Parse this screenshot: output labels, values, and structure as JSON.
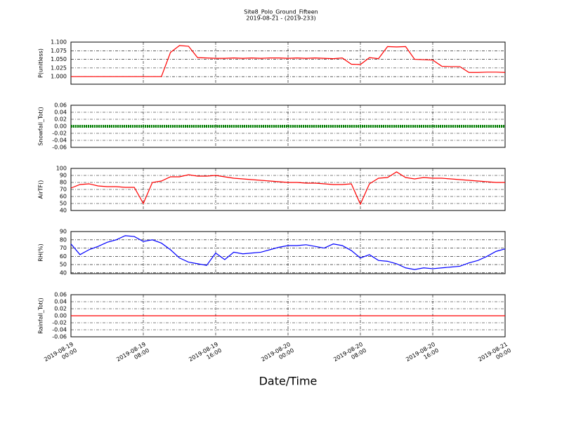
{
  "chart_data": [
    {
      "type": "line",
      "title": "Site8_Polo_Ground_Fifteen",
      "subtitle": "2019-08-21 - (2019-233)",
      "ylabel": "P(unitless)",
      "color": "#ff0000",
      "grid": true,
      "xlim": [
        "2019-08-19 00:00",
        "2019-08-21 00:00"
      ],
      "ylim": [
        0.978,
        1.1
      ],
      "yticks": [
        {
          "value": 1.0,
          "label": "1.000"
        },
        {
          "value": 1.025,
          "label": "1.025"
        },
        {
          "value": 1.05,
          "label": "1.050"
        },
        {
          "value": 1.075,
          "label": "1.075"
        },
        {
          "value": 1.1,
          "label": "1.100"
        }
      ],
      "x": [
        "2019-08-19 00:00",
        "2019-08-19 01:00",
        "2019-08-19 02:00",
        "2019-08-19 03:00",
        "2019-08-19 04:00",
        "2019-08-19 05:00",
        "2019-08-19 06:00",
        "2019-08-19 07:00",
        "2019-08-19 08:00",
        "2019-08-19 09:00",
        "2019-08-19 10:00",
        "2019-08-19 11:00",
        "2019-08-19 12:00",
        "2019-08-19 13:00",
        "2019-08-19 14:00",
        "2019-08-19 15:00",
        "2019-08-19 16:00",
        "2019-08-19 17:00",
        "2019-08-19 18:00",
        "2019-08-19 19:00",
        "2019-08-19 20:00",
        "2019-08-19 21:00",
        "2019-08-19 22:00",
        "2019-08-19 23:00",
        "2019-08-20 00:00",
        "2019-08-20 01:00",
        "2019-08-20 02:00",
        "2019-08-20 03:00",
        "2019-08-20 04:00",
        "2019-08-20 05:00",
        "2019-08-20 06:00",
        "2019-08-20 07:00",
        "2019-08-20 08:00",
        "2019-08-20 09:00",
        "2019-08-20 10:00",
        "2019-08-20 11:00",
        "2019-08-20 12:00",
        "2019-08-20 13:00",
        "2019-08-20 14:00",
        "2019-08-20 15:00",
        "2019-08-20 16:00",
        "2019-08-20 17:00",
        "2019-08-20 18:00",
        "2019-08-20 19:00",
        "2019-08-20 20:00",
        "2019-08-20 21:00",
        "2019-08-20 22:00",
        "2019-08-20 23:00",
        "2019-08-21 00:00"
      ],
      "values": [
        1.0,
        1.0,
        1.0,
        1.0,
        1.0,
        1.0,
        1.0,
        1.0,
        1.0,
        1.0,
        1.0,
        1.07,
        1.09,
        1.088,
        1.055,
        1.054,
        1.053,
        1.053,
        1.054,
        1.053,
        1.054,
        1.053,
        1.054,
        1.054,
        1.053,
        1.054,
        1.053,
        1.054,
        1.053,
        1.052,
        1.054,
        1.036,
        1.035,
        1.055,
        1.052,
        1.087,
        1.086,
        1.087,
        1.05,
        1.049,
        1.048,
        1.03,
        1.029,
        1.029,
        1.012,
        1.012,
        1.013,
        1.013,
        1.012
      ]
    },
    {
      "type": "line",
      "ylabel": "Snowfall_Tot()",
      "color": "#008000",
      "grid": true,
      "xlim": [
        "2019-08-19 00:00",
        "2019-08-21 00:00"
      ],
      "ylim": [
        -0.06,
        0.06
      ],
      "yticks": [
        -0.06,
        -0.04,
        -0.02,
        {
          "value": 0,
          "label": "0.00"
        },
        0.02,
        0.04,
        0.06
      ],
      "x": [
        "2019-08-19 00:00",
        "2019-08-19 01:00",
        "2019-08-19 02:00",
        "2019-08-19 03:00",
        "2019-08-19 04:00",
        "2019-08-19 05:00",
        "2019-08-19 06:00",
        "2019-08-19 07:00",
        "2019-08-19 08:00",
        "2019-08-19 09:00",
        "2019-08-19 10:00",
        "2019-08-19 11:00",
        "2019-08-19 12:00",
        "2019-08-19 13:00",
        "2019-08-19 14:00",
        "2019-08-19 15:00",
        "2019-08-19 16:00",
        "2019-08-19 17:00",
        "2019-08-19 18:00",
        "2019-08-19 19:00",
        "2019-08-19 20:00",
        "2019-08-19 21:00",
        "2019-08-19 22:00",
        "2019-08-19 23:00",
        "2019-08-20 00:00",
        "2019-08-20 01:00",
        "2019-08-20 02:00",
        "2019-08-20 03:00",
        "2019-08-20 04:00",
        "2019-08-20 05:00",
        "2019-08-20 06:00",
        "2019-08-20 07:00",
        "2019-08-20 08:00",
        "2019-08-20 09:00",
        "2019-08-20 10:00",
        "2019-08-20 11:00",
        "2019-08-20 12:00",
        "2019-08-20 13:00",
        "2019-08-20 14:00",
        "2019-08-20 15:00",
        "2019-08-20 16:00",
        "2019-08-20 17:00",
        "2019-08-20 18:00",
        "2019-08-20 19:00",
        "2019-08-20 20:00",
        "2019-08-20 21:00",
        "2019-08-20 22:00",
        "2019-08-20 23:00",
        "2019-08-21 00:00"
      ],
      "values": [
        0,
        0,
        0,
        0,
        0,
        0,
        0,
        0,
        0,
        0,
        0,
        0,
        0,
        0,
        0,
        0,
        0,
        0,
        0,
        0,
        0,
        0,
        0,
        0,
        0,
        0,
        0,
        0,
        0,
        0,
        0,
        0,
        0,
        0,
        0,
        0,
        0,
        0,
        0,
        0,
        0,
        0,
        0,
        0,
        0,
        0,
        0,
        0,
        0
      ]
    },
    {
      "type": "line",
      "ylabel": "AirTF()",
      "color": "#ff0000",
      "grid": true,
      "xlim": [
        "2019-08-19 00:00",
        "2019-08-21 00:00"
      ],
      "ylim": [
        40,
        100
      ],
      "yticks": [
        40,
        50,
        60,
        70,
        80,
        90,
        100
      ],
      "x": [
        "2019-08-19 00:00",
        "2019-08-19 01:00",
        "2019-08-19 02:00",
        "2019-08-19 03:00",
        "2019-08-19 04:00",
        "2019-08-19 05:00",
        "2019-08-19 06:00",
        "2019-08-19 07:00",
        "2019-08-19 08:00",
        "2019-08-19 09:00",
        "2019-08-19 10:00",
        "2019-08-19 11:00",
        "2019-08-19 12:00",
        "2019-08-19 13:00",
        "2019-08-19 14:00",
        "2019-08-19 15:00",
        "2019-08-19 16:00",
        "2019-08-19 17:00",
        "2019-08-19 18:00",
        "2019-08-19 19:00",
        "2019-08-19 20:00",
        "2019-08-19 21:00",
        "2019-08-19 22:00",
        "2019-08-19 23:00",
        "2019-08-20 00:00",
        "2019-08-20 01:00",
        "2019-08-20 02:00",
        "2019-08-20 03:00",
        "2019-08-20 04:00",
        "2019-08-20 05:00",
        "2019-08-20 06:00",
        "2019-08-20 07:00",
        "2019-08-20 08:00",
        "2019-08-20 09:00",
        "2019-08-20 10:00",
        "2019-08-20 11:00",
        "2019-08-20 12:00",
        "2019-08-20 13:00",
        "2019-08-20 14:00",
        "2019-08-20 15:00",
        "2019-08-20 16:00",
        "2019-08-20 17:00",
        "2019-08-20 18:00",
        "2019-08-20 19:00",
        "2019-08-20 20:00",
        "2019-08-20 21:00",
        "2019-08-20 22:00",
        "2019-08-20 23:00",
        "2019-08-21 00:00"
      ],
      "values": [
        72,
        77,
        78,
        75,
        74,
        74,
        73,
        73,
        50,
        80,
        82,
        88,
        88,
        91,
        89,
        89,
        90,
        88,
        86,
        85,
        84,
        83,
        82,
        81,
        80,
        80,
        79,
        79,
        78,
        77,
        77,
        78,
        49,
        78,
        86,
        87,
        95,
        87,
        85,
        87,
        86,
        86,
        85,
        84,
        83,
        82,
        81,
        80,
        80
      ]
    },
    {
      "type": "line",
      "ylabel": "RH(%)",
      "color": "#0000ff",
      "grid": true,
      "xlim": [
        "2019-08-19 00:00",
        "2019-08-21 00:00"
      ],
      "ylim": [
        39,
        90
      ],
      "yticks": [
        40,
        50,
        60,
        70,
        80,
        90
      ],
      "x": [
        "2019-08-19 00:00",
        "2019-08-19 01:00",
        "2019-08-19 02:00",
        "2019-08-19 03:00",
        "2019-08-19 04:00",
        "2019-08-19 05:00",
        "2019-08-19 06:00",
        "2019-08-19 07:00",
        "2019-08-19 08:00",
        "2019-08-19 09:00",
        "2019-08-19 10:00",
        "2019-08-19 11:00",
        "2019-08-19 12:00",
        "2019-08-19 13:00",
        "2019-08-19 14:00",
        "2019-08-19 15:00",
        "2019-08-19 16:00",
        "2019-08-19 17:00",
        "2019-08-19 18:00",
        "2019-08-19 19:00",
        "2019-08-19 20:00",
        "2019-08-19 21:00",
        "2019-08-19 22:00",
        "2019-08-19 23:00",
        "2019-08-20 00:00",
        "2019-08-20 01:00",
        "2019-08-20 02:00",
        "2019-08-20 03:00",
        "2019-08-20 04:00",
        "2019-08-20 05:00",
        "2019-08-20 06:00",
        "2019-08-20 07:00",
        "2019-08-20 08:00",
        "2019-08-20 09:00",
        "2019-08-20 10:00",
        "2019-08-20 11:00",
        "2019-08-20 12:00",
        "2019-08-20 13:00",
        "2019-08-20 14:00",
        "2019-08-20 15:00",
        "2019-08-20 16:00",
        "2019-08-20 17:00",
        "2019-08-20 18:00",
        "2019-08-20 19:00",
        "2019-08-20 20:00",
        "2019-08-20 21:00",
        "2019-08-20 22:00",
        "2019-08-20 23:00",
        "2019-08-21 00:00"
      ],
      "values": [
        75,
        62,
        68,
        72,
        77,
        80,
        85,
        84,
        78,
        80,
        76,
        68,
        58,
        53,
        51,
        49,
        64,
        56,
        65,
        63,
        64,
        65,
        68,
        71,
        73,
        73,
        74,
        72,
        70,
        75,
        73,
        67,
        58,
        62,
        55,
        54,
        51,
        46,
        44,
        46,
        45,
        46,
        47,
        48,
        52,
        55,
        60,
        66,
        69
      ]
    },
    {
      "type": "line",
      "ylabel": "Rainfall_Tot()",
      "xlabel": "Date/Time",
      "color": "#ff0000",
      "grid": true,
      "xlim": [
        "2019-08-19 00:00",
        "2019-08-21 00:00"
      ],
      "ylim": [
        -0.06,
        0.06
      ],
      "yticks": [
        -0.06,
        -0.04,
        -0.02,
        {
          "value": 0,
          "label": "0.00"
        },
        0.02,
        0.04,
        0.06
      ],
      "xticks": [
        {
          "value": "2019-08-19 00:00",
          "label": "2019-08-19\n00:00"
        },
        {
          "value": "2019-08-19 08:00",
          "label": "2019-08-19\n08:00"
        },
        {
          "value": "2019-08-19 16:00",
          "label": "2019-08-19\n16:00"
        },
        {
          "value": "2019-08-20 00:00",
          "label": "2019-08-20\n00:00"
        },
        {
          "value": "2019-08-20 08:00",
          "label": "2019-08-20\n08:00"
        },
        {
          "value": "2019-08-20 16:00",
          "label": "2019-08-20\n16:00"
        },
        {
          "value": "2019-08-21 00:00",
          "label": "2019-08-21\n00:00"
        }
      ],
      "x": [
        "2019-08-19 00:00",
        "2019-08-19 01:00",
        "2019-08-19 02:00",
        "2019-08-19 03:00",
        "2019-08-19 04:00",
        "2019-08-19 05:00",
        "2019-08-19 06:00",
        "2019-08-19 07:00",
        "2019-08-19 08:00",
        "2019-08-19 09:00",
        "2019-08-19 10:00",
        "2019-08-19 11:00",
        "2019-08-19 12:00",
        "2019-08-19 13:00",
        "2019-08-19 14:00",
        "2019-08-19 15:00",
        "2019-08-19 16:00",
        "2019-08-19 17:00",
        "2019-08-19 18:00",
        "2019-08-19 19:00",
        "2019-08-19 20:00",
        "2019-08-19 21:00",
        "2019-08-19 22:00",
        "2019-08-19 23:00",
        "2019-08-20 00:00",
        "2019-08-20 01:00",
        "2019-08-20 02:00",
        "2019-08-20 03:00",
        "2019-08-20 04:00",
        "2019-08-20 05:00",
        "2019-08-20 06:00",
        "2019-08-20 07:00",
        "2019-08-20 08:00",
        "2019-08-20 09:00",
        "2019-08-20 10:00",
        "2019-08-20 11:00",
        "2019-08-20 12:00",
        "2019-08-20 13:00",
        "2019-08-20 14:00",
        "2019-08-20 15:00",
        "2019-08-20 16:00",
        "2019-08-20 17:00",
        "2019-08-20 18:00",
        "2019-08-20 19:00",
        "2019-08-20 20:00",
        "2019-08-20 21:00",
        "2019-08-20 22:00",
        "2019-08-20 23:00",
        "2019-08-21 00:00"
      ],
      "values": [
        0,
        0,
        0,
        0,
        0,
        0,
        0,
        0,
        0,
        0,
        0,
        0,
        0,
        0,
        0,
        0,
        0,
        0,
        0,
        0,
        0,
        0,
        0,
        0,
        0,
        0,
        0,
        0,
        0,
        0,
        0,
        0,
        0,
        0,
        0,
        0,
        0,
        0,
        0,
        0,
        0,
        0,
        0,
        0,
        0,
        0,
        0,
        0,
        0
      ]
    }
  ]
}
